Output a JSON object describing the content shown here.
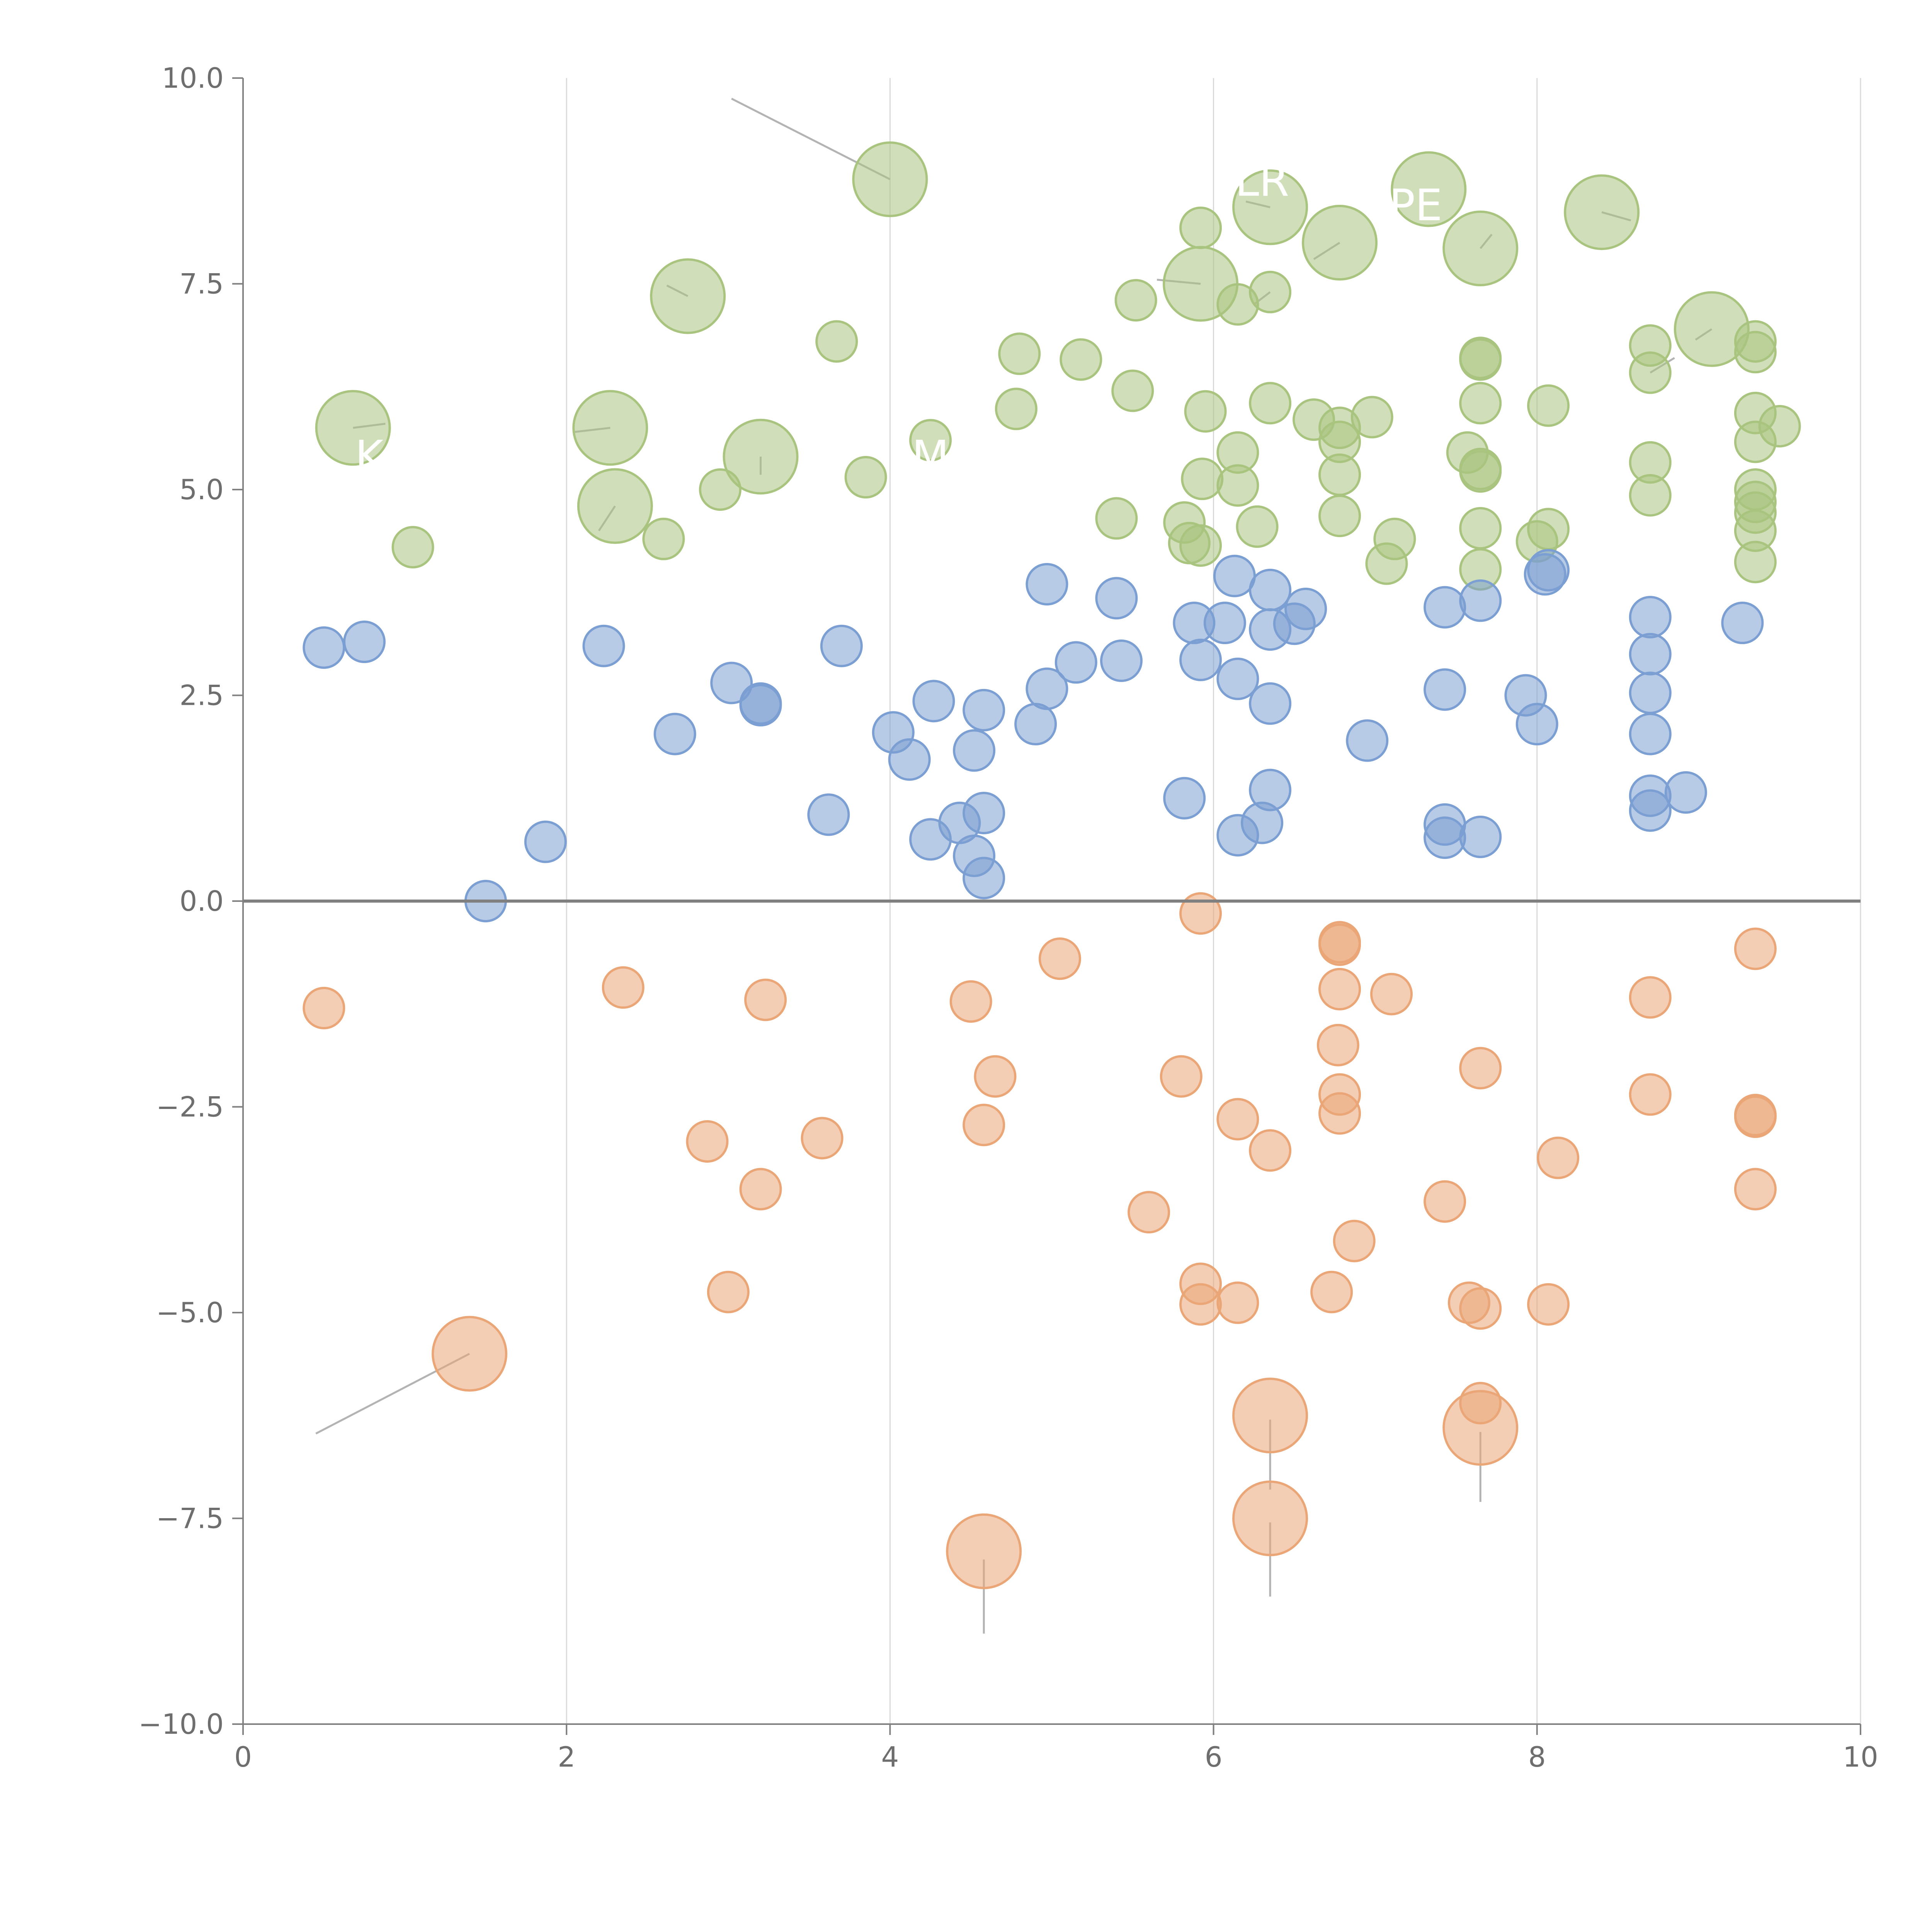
{
  "chart_data": {
    "type": "scatter",
    "title": "",
    "xlabel": "",
    "ylabel": "",
    "xlim": [
      0,
      10
    ],
    "ylim": [
      -10,
      10
    ],
    "x_ticks": [
      0,
      2,
      4,
      6,
      8,
      10
    ],
    "x_tick_labels": [
      "0",
      "2",
      "4",
      "6",
      "8",
      "10"
    ],
    "y_ticks": [
      -10,
      -7.5,
      -5,
      -2.5,
      0,
      2.5,
      5,
      7.5,
      10
    ],
    "y_tick_labels": [
      "−10.0",
      "−7.5",
      "−5.0",
      "−2.5",
      "0.0",
      "2.5",
      "5.0",
      "7.5",
      "10.0"
    ],
    "vertical_grid": true,
    "horizontal_grid": false,
    "zero_line": true,
    "colors": {
      "top": "#a9c47f",
      "middle": "#7b9fd2",
      "bottom": "#eaa677",
      "axis": "#808080",
      "grid": "#d9d9d9"
    },
    "series": [
      {
        "color": "#a9c47f",
        "points": [
          [
            1.05,
            4.3
          ],
          [
            2.95,
            5.0
          ],
          [
            3.85,
            5.15
          ],
          [
            3.67,
            6.8
          ],
          [
            4.25,
            5.6
          ],
          [
            4.8,
            6.65
          ],
          [
            4.78,
            5.98
          ],
          [
            5.18,
            6.58
          ],
          [
            5.52,
            7.3
          ],
          [
            5.5,
            6.2
          ],
          [
            5.4,
            4.65
          ],
          [
            5.82,
            4.6
          ],
          [
            5.85,
            4.35
          ],
          [
            5.92,
            4.32
          ],
          [
            5.93,
            5.13
          ],
          [
            5.95,
            5.95
          ],
          [
            5.92,
            8.18
          ],
          [
            6.15,
            7.25
          ],
          [
            6.35,
            7.4
          ],
          [
            6.15,
            5.45
          ],
          [
            6.15,
            5.05
          ],
          [
            6.27,
            4.55
          ],
          [
            6.35,
            6.05
          ],
          [
            6.62,
            5.85
          ],
          [
            6.78,
            5.75
          ],
          [
            6.78,
            5.58
          ],
          [
            6.78,
            5.18
          ],
          [
            6.78,
            4.68
          ],
          [
            6.98,
            5.88
          ],
          [
            7.07,
            4.1
          ],
          [
            7.12,
            4.4
          ],
          [
            7.57,
            5.45
          ],
          [
            7.65,
            6.6
          ],
          [
            7.65,
            6.58
          ],
          [
            7.65,
            6.05
          ],
          [
            7.65,
            5.25
          ],
          [
            7.65,
            5.22
          ],
          [
            7.65,
            4.53
          ],
          [
            7.65,
            4.03
          ],
          [
            8.0,
            4.37
          ],
          [
            8.07,
            4.52
          ],
          [
            8.07,
            6.02
          ],
          [
            8.7,
            6.75
          ],
          [
            8.7,
            6.42
          ],
          [
            8.7,
            5.33
          ],
          [
            8.7,
            4.93
          ],
          [
            9.35,
            6.8
          ],
          [
            9.35,
            6.67
          ],
          [
            9.35,
            5.93
          ],
          [
            9.35,
            5.58
          ],
          [
            9.35,
            5.0
          ],
          [
            9.35,
            4.85
          ],
          [
            9.35,
            4.72
          ],
          [
            9.35,
            4.5
          ],
          [
            9.35,
            4.12
          ],
          [
            9.5,
            5.77
          ],
          [
            2.6,
            4.4
          ]
        ],
        "large_points": [
          [
            0.68,
            5.75
          ],
          [
            2.27,
            5.75
          ],
          [
            2.3,
            4.8
          ],
          [
            2.75,
            7.35
          ],
          [
            3.2,
            5.4
          ],
          [
            4.0,
            8.77
          ],
          [
            5.92,
            7.5
          ],
          [
            6.35,
            8.43
          ],
          [
            6.78,
            8.0
          ],
          [
            7.33,
            8.65
          ],
          [
            7.65,
            7.93
          ],
          [
            8.4,
            8.37
          ],
          [
            9.08,
            6.95
          ]
        ]
      },
      {
        "color": "#7b9fd2",
        "points": [
          [
            0.5,
            3.08
          ],
          [
            0.75,
            3.15
          ],
          [
            1.5,
            0.0
          ],
          [
            1.87,
            0.72
          ],
          [
            2.23,
            3.1
          ],
          [
            2.67,
            2.03
          ],
          [
            3.02,
            2.65
          ],
          [
            3.2,
            2.4
          ],
          [
            3.2,
            2.38
          ],
          [
            3.62,
            1.05
          ],
          [
            3.7,
            3.1
          ],
          [
            4.02,
            2.05
          ],
          [
            4.12,
            1.72
          ],
          [
            4.25,
            0.75
          ],
          [
            4.27,
            2.43
          ],
          [
            4.43,
            0.95
          ],
          [
            4.52,
            0.55
          ],
          [
            4.52,
            1.83
          ],
          [
            4.58,
            1.07
          ],
          [
            4.58,
            2.32
          ],
          [
            4.58,
            0.28
          ],
          [
            4.9,
            2.15
          ],
          [
            4.97,
            3.85
          ],
          [
            4.97,
            2.58
          ],
          [
            5.15,
            2.9
          ],
          [
            5.4,
            3.68
          ],
          [
            5.43,
            2.92
          ],
          [
            5.82,
            1.25
          ],
          [
            5.88,
            3.38
          ],
          [
            5.92,
            2.93
          ],
          [
            6.07,
            3.38
          ],
          [
            6.13,
            3.95
          ],
          [
            6.15,
            2.7
          ],
          [
            6.15,
            0.8
          ],
          [
            6.3,
            0.95
          ],
          [
            6.35,
            3.78
          ],
          [
            6.35,
            3.3
          ],
          [
            6.35,
            2.4
          ],
          [
            6.35,
            1.35
          ],
          [
            6.5,
            3.37
          ],
          [
            6.57,
            3.55
          ],
          [
            6.95,
            1.95
          ],
          [
            7.43,
            3.57
          ],
          [
            7.43,
            2.57
          ],
          [
            7.43,
            0.93
          ],
          [
            7.43,
            0.77
          ],
          [
            7.65,
            3.65
          ],
          [
            7.65,
            0.78
          ],
          [
            7.93,
            2.5
          ],
          [
            8.0,
            2.15
          ],
          [
            8.05,
            3.97
          ],
          [
            8.07,
            4.02
          ],
          [
            8.7,
            3.45
          ],
          [
            8.7,
            3.0
          ],
          [
            8.7,
            2.53
          ],
          [
            8.7,
            2.03
          ],
          [
            8.7,
            1.28
          ],
          [
            8.7,
            1.1
          ],
          [
            8.92,
            1.32
          ],
          [
            9.27,
            3.38
          ]
        ],
        "large_points": []
      },
      {
        "color": "#eaa677",
        "points": [
          [
            0.5,
            -1.3
          ],
          [
            2.35,
            -1.05
          ],
          [
            2.87,
            -2.92
          ],
          [
            3.0,
            -4.75
          ],
          [
            3.2,
            -3.5
          ],
          [
            3.23,
            -1.2
          ],
          [
            3.58,
            -2.88
          ],
          [
            4.5,
            -1.22
          ],
          [
            4.58,
            -2.72
          ],
          [
            4.65,
            -2.13
          ],
          [
            5.05,
            -0.7
          ],
          [
            5.6,
            -3.78
          ],
          [
            5.8,
            -2.13
          ],
          [
            5.92,
            -0.15
          ],
          [
            5.92,
            -4.65
          ],
          [
            5.92,
            -4.9
          ],
          [
            6.15,
            -2.65
          ],
          [
            6.15,
            -4.88
          ],
          [
            6.35,
            -3.03
          ],
          [
            6.73,
            -4.75
          ],
          [
            6.77,
            -1.75
          ],
          [
            6.78,
            -0.53
          ],
          [
            6.78,
            -0.5
          ],
          [
            6.78,
            -1.07
          ],
          [
            6.78,
            -2.35
          ],
          [
            6.78,
            -2.58
          ],
          [
            6.87,
            -4.13
          ],
          [
            7.1,
            -1.13
          ],
          [
            7.43,
            -3.65
          ],
          [
            7.58,
            -4.88
          ],
          [
            7.65,
            -2.03
          ],
          [
            7.65,
            -4.95
          ],
          [
            7.65,
            -6.1
          ],
          [
            8.07,
            -4.9
          ],
          [
            8.13,
            -3.12
          ],
          [
            8.7,
            -1.17
          ],
          [
            8.7,
            -2.35
          ],
          [
            9.35,
            -0.58
          ],
          [
            9.35,
            -2.6
          ],
          [
            9.35,
            -2.62
          ],
          [
            9.35,
            -3.5
          ]
        ],
        "large_points": [
          [
            1.4,
            -5.5
          ],
          [
            4.58,
            -7.9
          ],
          [
            6.35,
            -6.25
          ],
          [
            6.35,
            -7.5
          ],
          [
            7.65,
            -6.4
          ]
        ]
      }
    ],
    "annotations": [
      {
        "text": "LR",
        "at": [
          6.35,
          8.43
        ],
        "text_pos": [
          6.3,
          8.75
        ]
      },
      {
        "text": "PE",
        "at": [
          7.65,
          7.93
        ],
        "text_pos": [
          7.25,
          8.45
        ]
      },
      {
        "text": "M",
        "at": [
          4.25,
          5.6
        ],
        "text_pos": [
          4.25,
          5.4
        ]
      },
      {
        "text": "K",
        "at": [
          0.68,
          5.75
        ],
        "text_pos": [
          0.78,
          5.4
        ]
      }
    ],
    "leader_lines": [
      [
        [
          4.0,
          8.77
        ],
        [
          3.02,
          9.75
        ]
      ],
      [
        [
          1.4,
          -5.5
        ],
        [
          0.45,
          -6.47
        ]
      ],
      [
        [
          4.58,
          -8.0
        ],
        [
          4.58,
          -8.9
        ]
      ],
      [
        [
          6.35,
          -6.3
        ],
        [
          6.35,
          -7.15
        ]
      ],
      [
        [
          6.35,
          -7.55
        ],
        [
          6.35,
          -8.45
        ]
      ],
      [
        [
          7.65,
          -6.45
        ],
        [
          7.65,
          -7.3
        ]
      ],
      [
        [
          0.68,
          5.75
        ],
        [
          0.88,
          5.8
        ]
      ],
      [
        [
          2.27,
          5.75
        ],
        [
          2.05,
          5.7
        ]
      ],
      [
        [
          2.3,
          4.8
        ],
        [
          2.2,
          4.5
        ]
      ],
      [
        [
          2.75,
          7.35
        ],
        [
          2.62,
          7.48
        ]
      ],
      [
        [
          3.2,
          5.4
        ],
        [
          3.2,
          5.18
        ]
      ],
      [
        [
          5.92,
          7.5
        ],
        [
          5.65,
          7.55
        ]
      ],
      [
        [
          6.35,
          8.43
        ],
        [
          6.2,
          8.5
        ]
      ],
      [
        [
          6.78,
          8.0
        ],
        [
          6.62,
          7.8
        ]
      ],
      [
        [
          6.35,
          7.4
        ],
        [
          6.25,
          7.25
        ]
      ],
      [
        [
          7.65,
          7.93
        ],
        [
          7.72,
          8.1
        ]
      ],
      [
        [
          8.4,
          8.37
        ],
        [
          8.58,
          8.27
        ]
      ],
      [
        [
          9.08,
          6.95
        ],
        [
          8.98,
          6.82
        ]
      ],
      [
        [
          8.7,
          6.42
        ],
        [
          8.85,
          6.6
        ]
      ]
    ]
  }
}
